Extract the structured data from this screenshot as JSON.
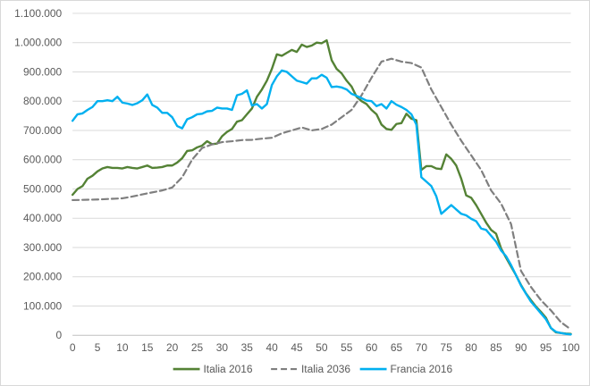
{
  "chart_data": {
    "type": "line",
    "title": "",
    "xlabel": "",
    "ylabel": "",
    "xlim": [
      0,
      100
    ],
    "ylim": [
      0,
      1100000
    ],
    "grid": "horizontal",
    "legend_position": "bottom",
    "y_ticks": [
      0,
      100000,
      200000,
      300000,
      400000,
      500000,
      600000,
      700000,
      800000,
      900000,
      1000000,
      1100000
    ],
    "y_tick_labels": [
      "0",
      "100.000",
      "200.000",
      "300.000",
      "400.000",
      "500.000",
      "600.000",
      "700.000",
      "800.000",
      "900.000",
      "1.000.000",
      "1.100.000"
    ],
    "x_ticks": [
      0,
      5,
      10,
      15,
      20,
      25,
      30,
      35,
      40,
      45,
      50,
      55,
      60,
      65,
      70,
      75,
      80,
      85,
      90,
      95,
      100
    ],
    "x_tick_labels": [
      "0",
      "5",
      "10",
      "15",
      "20",
      "25",
      "30",
      "35",
      "40",
      "45",
      "50",
      "55",
      "60",
      "65",
      "70",
      "75",
      "80",
      "85",
      "90",
      "95",
      "100"
    ],
    "series": [
      {
        "name": "Italia 2016",
        "color": "#548235",
        "dash": "solid",
        "x": [
          0,
          1,
          2,
          3,
          4,
          5,
          6,
          7,
          8,
          9,
          10,
          11,
          12,
          13,
          14,
          15,
          16,
          17,
          18,
          19,
          20,
          21,
          22,
          23,
          24,
          25,
          26,
          27,
          28,
          29,
          30,
          31,
          32,
          33,
          34,
          35,
          36,
          37,
          38,
          39,
          40,
          41,
          42,
          43,
          44,
          45,
          46,
          47,
          48,
          49,
          50,
          51,
          52,
          53,
          54,
          55,
          56,
          57,
          58,
          59,
          60,
          61,
          62,
          63,
          64,
          65,
          66,
          67,
          68,
          69,
          70,
          71,
          72,
          73,
          74,
          75,
          76,
          77,
          78,
          79,
          80,
          81,
          82,
          83,
          84,
          85,
          86,
          87,
          88,
          89,
          90,
          91,
          92,
          93,
          94,
          95,
          96,
          97,
          98,
          99,
          100
        ],
        "values": [
          480000,
          500000,
          510000,
          535000,
          545000,
          560000,
          570000,
          575000,
          572000,
          572000,
          570000,
          575000,
          572000,
          570000,
          575000,
          580000,
          572000,
          573000,
          575000,
          580000,
          580000,
          590000,
          605000,
          630000,
          632000,
          642000,
          648000,
          663000,
          653000,
          655000,
          680000,
          695000,
          705000,
          730000,
          735000,
          755000,
          775000,
          815000,
          840000,
          870000,
          910000,
          960000,
          955000,
          965000,
          975000,
          968000,
          993000,
          985000,
          990000,
          1000000,
          998000,
          1008000,
          940000,
          910000,
          895000,
          870000,
          850000,
          815000,
          800000,
          790000,
          770000,
          755000,
          720000,
          705000,
          702000,
          722000,
          725000,
          757000,
          740000,
          735000,
          565000,
          578000,
          578000,
          570000,
          568000,
          618000,
          603000,
          580000,
          535000,
          478000,
          470000,
          445000,
          415000,
          385000,
          360000,
          347000,
          297000,
          265000,
          235000,
          205000,
          172000,
          143000,
          120000,
          98000,
          80000,
          60000,
          25000,
          10000,
          8000,
          6000,
          5000
        ]
      },
      {
        "name": "Italia 2036",
        "color": "#7f7f7f",
        "dash": "dashed",
        "x": [
          0,
          5,
          10,
          12,
          15,
          18,
          20,
          22,
          24,
          26,
          28,
          30,
          32,
          34,
          36,
          38,
          40,
          42,
          44,
          46,
          48,
          50,
          52,
          54,
          56,
          58,
          60,
          62,
          64,
          66,
          68,
          70,
          72,
          74,
          76,
          78,
          80,
          82,
          84,
          86,
          88,
          90,
          92,
          94,
          96,
          98,
          100
        ],
        "values": [
          462000,
          464000,
          468000,
          474000,
          485000,
          495000,
          505000,
          540000,
          600000,
          640000,
          652000,
          660000,
          663000,
          667000,
          668000,
          672000,
          675000,
          690000,
          700000,
          710000,
          700000,
          705000,
          720000,
          745000,
          770000,
          820000,
          880000,
          935000,
          945000,
          935000,
          930000,
          915000,
          840000,
          780000,
          720000,
          665000,
          615000,
          565000,
          495000,
          450000,
          380000,
          220000,
          165000,
          120000,
          85000,
          45000,
          20000
        ]
      },
      {
        "name": "Francia 2016",
        "color": "#00b0f0",
        "dash": "solid",
        "x": [
          0,
          1,
          2,
          3,
          4,
          5,
          6,
          7,
          8,
          9,
          10,
          11,
          12,
          13,
          14,
          15,
          16,
          17,
          18,
          19,
          20,
          21,
          22,
          23,
          24,
          25,
          26,
          27,
          28,
          29,
          30,
          31,
          32,
          33,
          34,
          35,
          36,
          37,
          38,
          39,
          40,
          41,
          42,
          43,
          44,
          45,
          46,
          47,
          48,
          49,
          50,
          51,
          52,
          53,
          54,
          55,
          56,
          57,
          58,
          59,
          60,
          61,
          62,
          63,
          64,
          65,
          66,
          67,
          68,
          69,
          70,
          71,
          72,
          73,
          74,
          75,
          76,
          77,
          78,
          79,
          80,
          81,
          82,
          83,
          84,
          85,
          86,
          87,
          88,
          89,
          90,
          91,
          92,
          93,
          94,
          95,
          96,
          97,
          98,
          99,
          100
        ],
        "values": [
          733000,
          755000,
          758000,
          770000,
          780000,
          800000,
          800000,
          803000,
          800000,
          815000,
          795000,
          792000,
          787000,
          793000,
          803000,
          823000,
          787000,
          778000,
          760000,
          760000,
          745000,
          715000,
          707000,
          738000,
          745000,
          755000,
          757000,
          765000,
          767000,
          778000,
          775000,
          775000,
          770000,
          820000,
          825000,
          837000,
          785000,
          790000,
          775000,
          790000,
          855000,
          885000,
          905000,
          900000,
          885000,
          870000,
          865000,
          860000,
          878000,
          878000,
          890000,
          880000,
          848000,
          850000,
          847000,
          840000,
          825000,
          818000,
          810000,
          802000,
          800000,
          783000,
          790000,
          775000,
          800000,
          788000,
          780000,
          770000,
          755000,
          720000,
          540000,
          525000,
          510000,
          475000,
          415000,
          430000,
          445000,
          430000,
          415000,
          410000,
          398000,
          390000,
          365000,
          360000,
          340000,
          320000,
          290000,
          270000,
          240000,
          205000,
          170000,
          142000,
          115000,
          95000,
          75000,
          55000,
          25000,
          12000,
          8000,
          5000,
          3000
        ]
      }
    ]
  }
}
